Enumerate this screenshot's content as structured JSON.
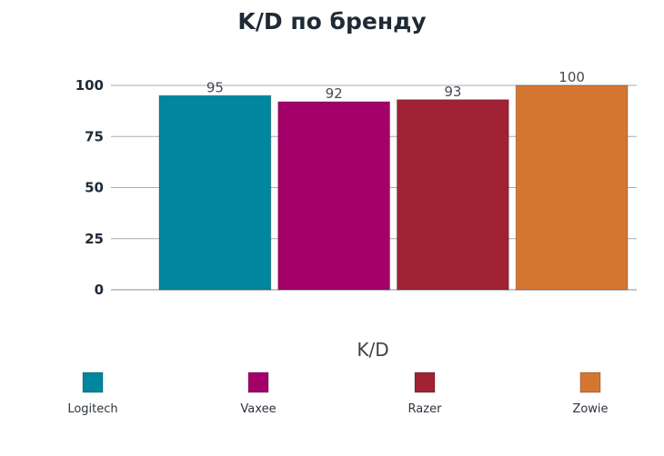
{
  "chart_data": {
    "type": "bar",
    "title": "K/D по бренду",
    "xlabel": "K/D",
    "ylabel": "",
    "categories": [
      "Logitech",
      "Vaxee",
      "Razer",
      "Zowie"
    ],
    "values": [
      95,
      92,
      93,
      100
    ],
    "colors": [
      "#00869e",
      "#a3006a",
      "#a02234",
      "#d47632"
    ],
    "ylim": [
      0,
      100
    ],
    "yticks": [
      0,
      25,
      50,
      75,
      100
    ],
    "grid": true,
    "legend": "bottom"
  }
}
